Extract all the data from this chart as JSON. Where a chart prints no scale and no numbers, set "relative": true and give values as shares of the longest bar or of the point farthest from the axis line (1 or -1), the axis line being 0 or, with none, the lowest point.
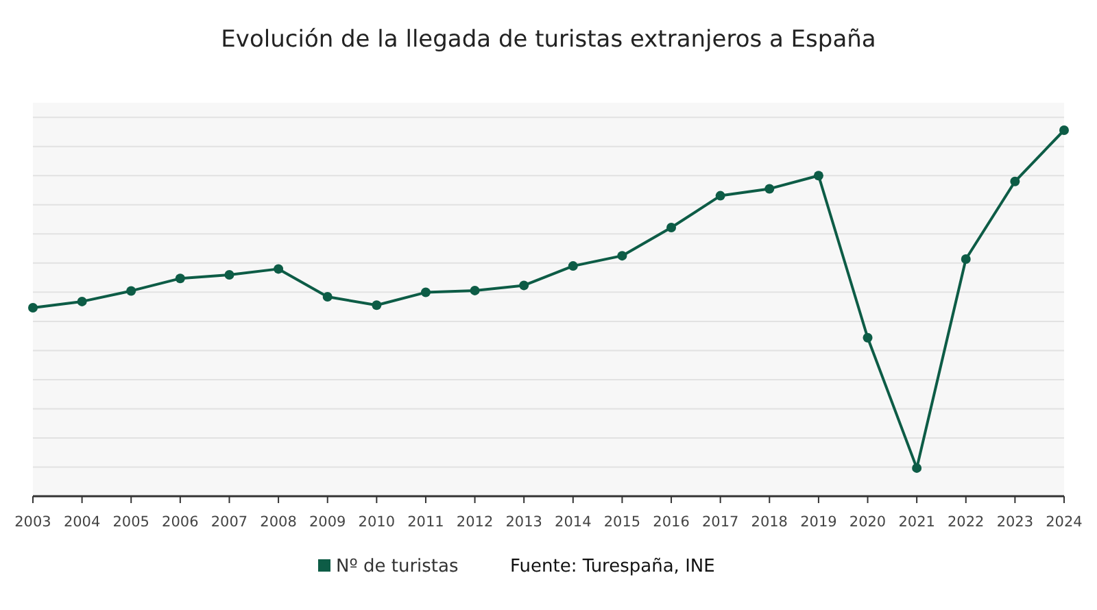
{
  "chart_data": {
    "type": "line",
    "title": "Evolución de la llegada de turistas extranjeros a España",
    "categories": [
      "2003",
      "2004",
      "2005",
      "2006",
      "2007",
      "2008",
      "2009",
      "2010",
      "2011",
      "2012",
      "2013",
      "2014",
      "2015",
      "2016",
      "2017",
      "2018",
      "2019",
      "2020",
      "2021",
      "2022",
      "2023",
      "2024"
    ],
    "series": [
      {
        "name": "Nº de turistas",
        "color": "#0d5c46",
        "values": [
          0.515,
          0.532,
          0.561,
          0.595,
          0.605,
          0.621,
          0.545,
          0.522,
          0.557,
          0.562,
          0.576,
          0.629,
          0.657,
          0.734,
          0.821,
          0.84,
          0.876,
          0.433,
          0.077,
          0.648,
          0.86,
          1
        ]
      }
    ],
    "relative": true,
    "grid": true,
    "legend": "bottom",
    "marker": "circle",
    "line_style": "solid",
    "annotations": [
      "Fuente: Turespaña, INE"
    ]
  }
}
